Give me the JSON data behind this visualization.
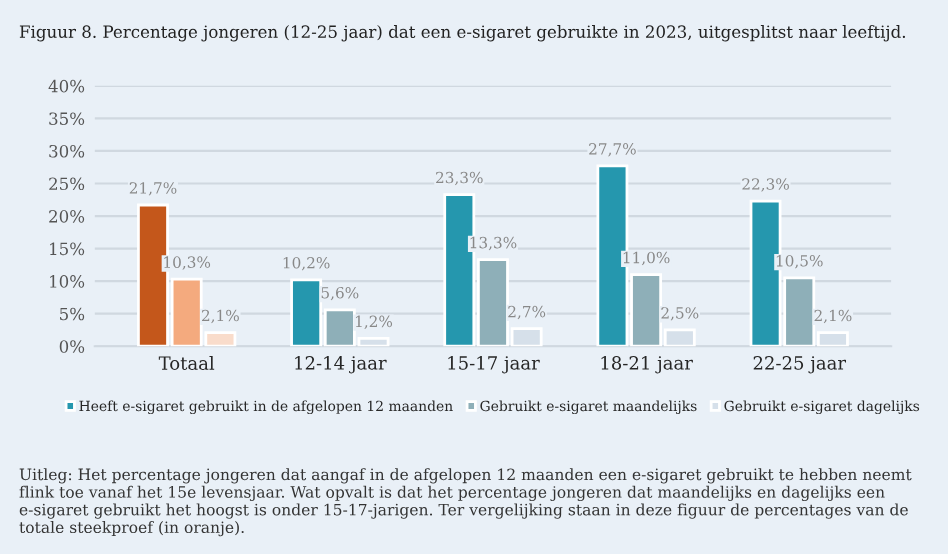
{
  "chart_data": {
    "type": "bar",
    "title": "Figuur 8. Percentage jongeren (12-25 jaar) dat een e-sigaret gebruikte in 2023, uitgesplitst naar leeftijd.",
    "categories": [
      "Totaal",
      "12-14 jaar",
      "15-17 jaar",
      "18-21 jaar",
      "22-25 jaar"
    ],
    "series": [
      {
        "name": "Heeft e-sigaret gebruikt in de afgelopen 12 maanden",
        "color": "#2597ae",
        "colors": [
          "#c4571b",
          "#2597ae",
          "#2597ae",
          "#2597ae",
          "#2597ae"
        ],
        "values": [
          21.7,
          10.2,
          23.3,
          27.7,
          22.3
        ],
        "value_labels": [
          "21,7%",
          "10,2%",
          "23,3%",
          "27,7%",
          "22,3%"
        ]
      },
      {
        "name": "Gebruikt e-sigaret maandelijks",
        "color": "#8eafb8",
        "colors": [
          "#f4aa7e",
          "#8eafb8",
          "#8eafb8",
          "#8eafb8",
          "#8eafb8"
        ],
        "values": [
          10.3,
          5.6,
          13.3,
          11.0,
          10.5
        ],
        "value_labels": [
          "10,3%",
          "5,6%",
          "13,3%",
          "11,0%",
          "10,5%"
        ]
      },
      {
        "name": "Gebruikt e-sigaret dagelijks",
        "color": "#d6e0ea",
        "colors": [
          "#f9dccb",
          "#d6e0ea",
          "#d6e0ea",
          "#d6e0ea",
          "#d6e0ea"
        ],
        "values": [
          2.1,
          1.2,
          2.7,
          2.5,
          2.1
        ],
        "value_labels": [
          "2,1%",
          "1,2%",
          "2,7%",
          "2,5%",
          "2,1%"
        ]
      }
    ],
    "ylim": [
      0,
      40
    ],
    "yticks": [
      {
        "value": 0,
        "label": "0%"
      },
      {
        "value": 5,
        "label": "5%"
      },
      {
        "value": 10,
        "label": "10%"
      },
      {
        "value": 15,
        "label": "15%"
      },
      {
        "value": 20,
        "label": "20%"
      },
      {
        "value": 25,
        "label": "25%"
      },
      {
        "value": 30,
        "label": "30%"
      },
      {
        "value": 35,
        "label": "35%"
      },
      {
        "value": 40,
        "label": "40%"
      }
    ],
    "grid": "y",
    "legend": "bottom",
    "annotations": [
      "Uitleg: Het percentage jongeren dat aangaf in de afgelopen 12 maanden een e-sigaret gebruikt te hebben neemt flink toe vanaf het 15e levensjaar. Wat opvalt is dat het percentage jongeren dat maandelijks en dagelijks een e-sigaret gebruikt het hoogst is onder 15-17-jarigen. Ter vergelijking staan in deze figuur de percentages van de totale steekproef (in oranje)."
    ]
  }
}
